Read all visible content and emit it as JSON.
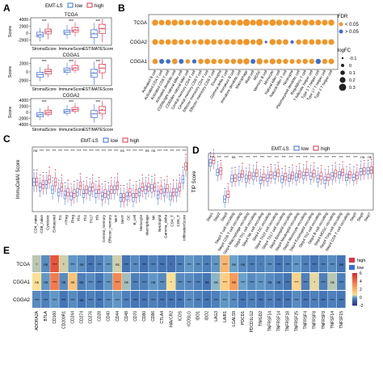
{
  "panels": {
    "A": {
      "label": "A",
      "legend_title": "EMT-LS",
      "groups": [
        {
          "name": "low",
          "color": "#3b6fd6"
        },
        {
          "name": "high",
          "color": "#e0334a"
        }
      ],
      "categories": [
        "StromalScore",
        "ImmuneScore",
        "ESTIMATEScore"
      ],
      "yaxis_label": "Score",
      "subplots": [
        {
          "title": "TCGA",
          "yticks": [
            "4000",
            "2000",
            "0",
            "-2000"
          ],
          "ylim": [
            -3500,
            4500
          ],
          "significance": [
            "***",
            "***",
            "***"
          ],
          "boxes": {
            "low": [
              [
                -2400,
                -1100,
                -500,
                300,
                1600
              ],
              [
                -1600,
                -400,
                300,
                900,
                2400
              ],
              [
                -3200,
                -1300,
                -200,
                1000,
                3000
              ]
            ],
            "high": [
              [
                -1800,
                -200,
                500,
                1200,
                2900
              ],
              [
                -1000,
                300,
                900,
                1700,
                3200
              ],
              [
                -2600,
                -100,
                1300,
                2600,
                4200
              ]
            ]
          }
        },
        {
          "title": "CGGA1",
          "yticks": [
            "2000",
            "0",
            "-2000"
          ],
          "ylim": [
            -3200,
            3200
          ],
          "significance": [
            "***",
            "***",
            "***"
          ],
          "boxes": {
            "low": [
              [
                -2200,
                -1200,
                -600,
                -100,
                1100
              ],
              [
                -800,
                -100,
                400,
                900,
                2100
              ],
              [
                -3000,
                -1200,
                -300,
                600,
                2400
              ]
            ],
            "high": [
              [
                -1300,
                -500,
                100,
                600,
                1800
              ],
              [
                -300,
                400,
                900,
                1500,
                2700
              ],
              [
                -1700,
                -200,
                900,
                1800,
                3000
              ]
            ]
          }
        },
        {
          "title": "CGGA2",
          "yticks": [
            "4000",
            "2000",
            "0",
            "-2000",
            "-4000"
          ],
          "ylim": [
            -4500,
            4500
          ],
          "significance": [
            "***",
            "***",
            "***"
          ],
          "boxes": {
            "low": [
              [
                -2600,
                -1500,
                -800,
                -100,
                1400
              ],
              [
                -1200,
                -300,
                300,
                900,
                2400
              ],
              [
                -3400,
                -1700,
                -500,
                600,
                2600
              ]
            ],
            "high": [
              [
                -1500,
                -700,
                0,
                700,
                2100
              ],
              [
                -500,
                300,
                900,
                1600,
                3100
              ],
              [
                -2300,
                -500,
                700,
                1900,
                3700
              ]
            ]
          }
        }
      ],
      "xaxis_labels": [
        "StromalScore",
        "ImmuneScore",
        "ESTIMATEScore"
      ]
    },
    "B": {
      "label": "B",
      "rows": [
        "TCGA",
        "CGGA2",
        "CGGA1"
      ],
      "columns": [
        "Activated B cell",
        "Activated CD4 T cell",
        "Activated CD8 T cell",
        "Activated dendritic cell",
        "CD56bright natural killer cell",
        "CD56dim natural killer cell",
        "Central memory CD4 T cell",
        "Central memory CD8 T cell",
        "Effector memeory CD4 T cell",
        "Effector memeory CD8 T cell",
        "Eosinophil",
        "Gamma delta T cell",
        "Immature B cell",
        "Immature dendritic cell",
        "Macrophage",
        "Mast cell",
        "MDSC",
        "Memory B cell",
        "Monocyte",
        "Natural killer cell",
        "Natural killer T cell",
        "Neutrophil",
        "Plasmacytoid dendritic cell",
        "Regulatory T cell",
        "T follicular helper cell",
        "Type 1 T helper cell",
        "Type 17 T helper cell",
        "Type 2 T helper cell"
      ],
      "fdr_colors": {
        "lt": "#f0962a",
        "ge": "#3a6fd0"
      },
      "fdr_legend_title": "FDR",
      "fdr_labels": {
        "lt": "< 0.05",
        "ge": "> 0.05"
      },
      "logfc_legend_title": "logFC",
      "logfc_legend_values": [
        "-0.1",
        "0",
        "0.1",
        "0.2",
        "0.3"
      ],
      "logfc": [
        [
          0.22,
          0.18,
          0.2,
          0.22,
          0.18,
          0.17,
          0.15,
          0.2,
          0.22,
          0.2,
          0.18,
          0.2,
          0.2,
          0.22,
          0.28,
          0.2,
          0.28,
          0.18,
          0.25,
          0.22,
          0.2,
          0.2,
          0.18,
          0.22,
          0.2,
          0.2,
          0.2,
          0.22
        ],
        [
          0.2,
          0.16,
          0.18,
          0.2,
          0.15,
          0.15,
          0.12,
          0.18,
          0.2,
          0.18,
          0.15,
          0.18,
          0.18,
          0.2,
          0.24,
          0.15,
          0.25,
          -0.05,
          0.22,
          0.18,
          0.18,
          0.02,
          0.15,
          0.18,
          0.18,
          0.18,
          0.18,
          0.2
        ],
        [
          0.16,
          0.13,
          0.1,
          0.18,
          0.12,
          0.1,
          0.08,
          0.15,
          0.18,
          0.16,
          0.12,
          0.15,
          0.15,
          0.18,
          0.22,
          0.12,
          0.22,
          0.1,
          0.2,
          0.15,
          0.15,
          0.12,
          0.12,
          0.15,
          0.15,
          0.15,
          0.15,
          0.18
        ]
      ],
      "fdr_sig": [
        [
          1,
          1,
          1,
          1,
          1,
          1,
          1,
          1,
          1,
          1,
          1,
          1,
          1,
          1,
          1,
          1,
          1,
          1,
          1,
          1,
          1,
          1,
          1,
          1,
          1,
          1,
          1,
          1
        ],
        [
          1,
          1,
          1,
          1,
          1,
          1,
          1,
          1,
          1,
          1,
          1,
          1,
          1,
          1,
          1,
          1,
          1,
          0,
          1,
          1,
          1,
          0,
          1,
          1,
          1,
          1,
          1,
          1
        ],
        [
          1,
          0,
          0,
          1,
          0,
          1,
          0,
          1,
          1,
          1,
          1,
          1,
          1,
          1,
          1,
          0,
          1,
          1,
          1,
          1,
          1,
          1,
          1,
          1,
          1,
          0,
          1,
          1
        ]
      ]
    },
    "C": {
      "label": "C",
      "legend_title": "EMT-LS",
      "yaxis_label": "ImmuCellAI Score",
      "categories": [
        "CD4_naive",
        "CD8_naive",
        "Cytotoxic",
        "Exhausted",
        "Tr1",
        "nTreg",
        "iTreg",
        "Th1",
        "Th2",
        "Th17",
        "Tfh",
        "Central_memory",
        "Effector_memory",
        "NKT",
        "MAIT",
        "DC",
        "B_cell",
        "Monocyte",
        "Macrophage",
        "NK",
        "Neutrophil",
        "Gamma_delta",
        "CD4_T",
        "CD8_T",
        "InfiltrationScore"
      ],
      "significance": [
        "ns",
        "***",
        "***",
        "***",
        "***",
        "***",
        "***",
        "***",
        "***",
        "***",
        "***",
        "***",
        "***",
        "***",
        "ns",
        "***",
        "***",
        "***",
        "ns",
        "ns",
        "***",
        "***",
        "***",
        "***",
        "***"
      ],
      "low_medians": [
        0.18,
        0.14,
        0.16,
        0.12,
        0.1,
        0.08,
        0.07,
        0.1,
        0.09,
        0.11,
        0.09,
        0.07,
        0.08,
        0.12,
        0.06,
        0.07,
        0.06,
        0.1,
        0.12,
        0.13,
        0.08,
        0.1,
        0.07,
        0.1,
        0.2
      ],
      "high_medians": [
        0.18,
        0.16,
        0.2,
        0.18,
        0.14,
        0.1,
        0.09,
        0.15,
        0.12,
        0.14,
        0.12,
        0.09,
        0.12,
        0.15,
        0.06,
        0.1,
        0.09,
        0.14,
        0.14,
        0.14,
        0.12,
        0.13,
        0.1,
        0.14,
        0.3
      ]
    },
    "D": {
      "label": "D",
      "legend_title": "EMT-LS",
      "yaxis_label": "TIP Score",
      "categories": [
        "Step1",
        "Step2",
        "Step3",
        "Step4 T cell recruiting",
        "Step4 CD8 T cell recruiting",
        "Step4 Macrophage recruiting",
        "Step4 Th1 cell recruiting",
        "Step4 NK cell recruiting",
        "Step4 DC recruiting",
        "Step4 Th22 cell recruiting",
        "Step4 Th17 cell recruiting",
        "Step4 Basophil recruiting",
        "Step4 Neutrophil recruiting",
        "Step4 Monocyte recruiting",
        "Step4 Eosinophil recruiting",
        "Step4 Th2 cell recruiting",
        "Step4 B cell recruiting",
        "Step4 MDSC recruiting",
        "Step4 Treg cell recruiting",
        "Step4 CD4 T cell recruiting",
        "Step5",
        "Step6",
        "Step7"
      ],
      "significance": [
        "***",
        "***",
        "***",
        "ns",
        "***",
        "***",
        "***",
        "***",
        "***",
        "***",
        "***",
        "***",
        "***",
        "***",
        "***",
        "***",
        "***",
        "***",
        "***",
        "***",
        "***",
        "ns",
        "ns"
      ],
      "low_medians": [
        0.6,
        0.3,
        -0.55,
        0.1,
        0.15,
        0.1,
        0.18,
        0.05,
        0.12,
        0.2,
        0.08,
        0.12,
        0.15,
        0.2,
        0.18,
        0.1,
        0.05,
        0.18,
        0.22,
        0.14,
        0.14,
        0.32,
        0.35
      ],
      "high_medians": [
        0.68,
        0.34,
        -0.4,
        0.12,
        0.25,
        0.2,
        0.28,
        0.14,
        0.22,
        0.28,
        0.16,
        0.2,
        0.24,
        0.3,
        0.26,
        0.18,
        0.14,
        0.26,
        0.3,
        0.22,
        0.2,
        0.34,
        0.37
      ]
    },
    "E": {
      "label": "E",
      "rows": [
        "TCGA",
        "CGGA1",
        "CGGA2"
      ],
      "columns": [
        "ADORA2A",
        "BTLA",
        "CD160",
        "CD200R1",
        "CD244",
        "CD274",
        "CD276",
        "CD28",
        "CD40",
        "CD44",
        "CD48",
        "CD70",
        "CD80",
        "CD86",
        "CTLA4",
        "HAVCR2",
        "ICOS",
        "ICOSLG",
        "IDO1",
        "IDO2",
        "LAG3",
        "LAIR1",
        "LGALS9",
        "PDCD1",
        "PDCD1LG2",
        "TIMGD2",
        "TNFRSF14",
        "TNFRSF14",
        "TNFRSF18",
        "TNFRSF25",
        "TNFRSF4",
        "TNFRSF8",
        "TNFRSF9",
        "TNFSF14",
        "TNFSF15"
      ],
      "colorbar_ticks": [
        "6",
        "4",
        "2",
        "0",
        "-2"
      ],
      "legend_items": [
        "high",
        "low"
      ],
      "values": [
        [
          0.3,
          -0.3,
          4.8,
          0.4,
          -0.2,
          -0.3,
          -0.5,
          -0.4,
          -0.2,
          0.4,
          -0.5,
          -0.3,
          -0.6,
          -0.4,
          -0.5,
          -0.6,
          -0.4,
          -0.2,
          -0.3,
          -0.4,
          -0.2,
          1.8,
          -0.1,
          -0.3,
          -0.4,
          -0.4,
          -0.3,
          -0.5,
          -0.4,
          -0.2,
          -0.4,
          -0.5,
          -0.4,
          -0.3,
          -0.5
        ],
        [
          0.6,
          -0.2,
          3.6,
          -0.3,
          1.4,
          -0.4,
          -0.3,
          -0.5,
          -0.2,
          3.2,
          0.2,
          -0.4,
          -0.4,
          -0.2,
          -0.3,
          0.6,
          -0.3,
          -0.3,
          -0.4,
          -0.5,
          0.1,
          1.1,
          2.6,
          -0.1,
          -0.3,
          -0.2,
          -0.3,
          -0.4,
          -0.5,
          1.0,
          -0.4,
          0.5,
          -0.4,
          0.3,
          -0.4
        ],
        [
          -0.3,
          -0.4,
          -0.2,
          -0.5,
          -0.3,
          -0.5,
          -0.4,
          -0.5,
          -0.3,
          -0.2,
          -0.4,
          -0.5,
          -0.5,
          -0.4,
          -0.5,
          -0.5,
          -0.5,
          -0.3,
          -0.4,
          -0.5,
          -0.4,
          -0.2,
          -0.3,
          -0.5,
          -0.4,
          -0.5,
          -0.4,
          -0.5,
          -0.5,
          -0.3,
          -0.5,
          -0.4,
          -0.5,
          -0.4,
          -0.5
        ]
      ],
      "stars": [
        [
          "*",
          "ns",
          "***",
          "*",
          "***",
          "ns",
          "***",
          "***",
          "***",
          "ns",
          "***",
          "***",
          "***",
          "***",
          "***",
          "*",
          "***",
          "***",
          "***",
          "***",
          "***",
          "***",
          "ns",
          "ns",
          "***",
          "*",
          "***",
          "***",
          "***",
          "***",
          "***",
          "***",
          "***",
          "***",
          "ns"
        ],
        [
          "ns",
          "ns",
          "***",
          "ns",
          "ns",
          "ns",
          "***",
          "***",
          "***",
          "***",
          "ns",
          "***",
          "***",
          "ns",
          "***",
          "*",
          "***",
          "***",
          "***",
          "ns",
          "ns",
          "***",
          "ns",
          "***",
          "***",
          "***",
          "ns",
          "ns",
          "***",
          "***",
          "***",
          "*",
          "***",
          "ns",
          "***"
        ],
        [
          "***",
          "***",
          "***",
          "***",
          "***",
          "ns",
          "***",
          "***",
          "***",
          "***",
          "***",
          "***",
          "***",
          "***",
          "***",
          "***",
          "***",
          "***",
          "***",
          "***",
          "***",
          "***",
          "***",
          "***",
          "***",
          "***",
          "***",
          "***",
          "***",
          "***",
          "***",
          "***",
          "***",
          "***",
          "***"
        ]
      ]
    }
  }
}
